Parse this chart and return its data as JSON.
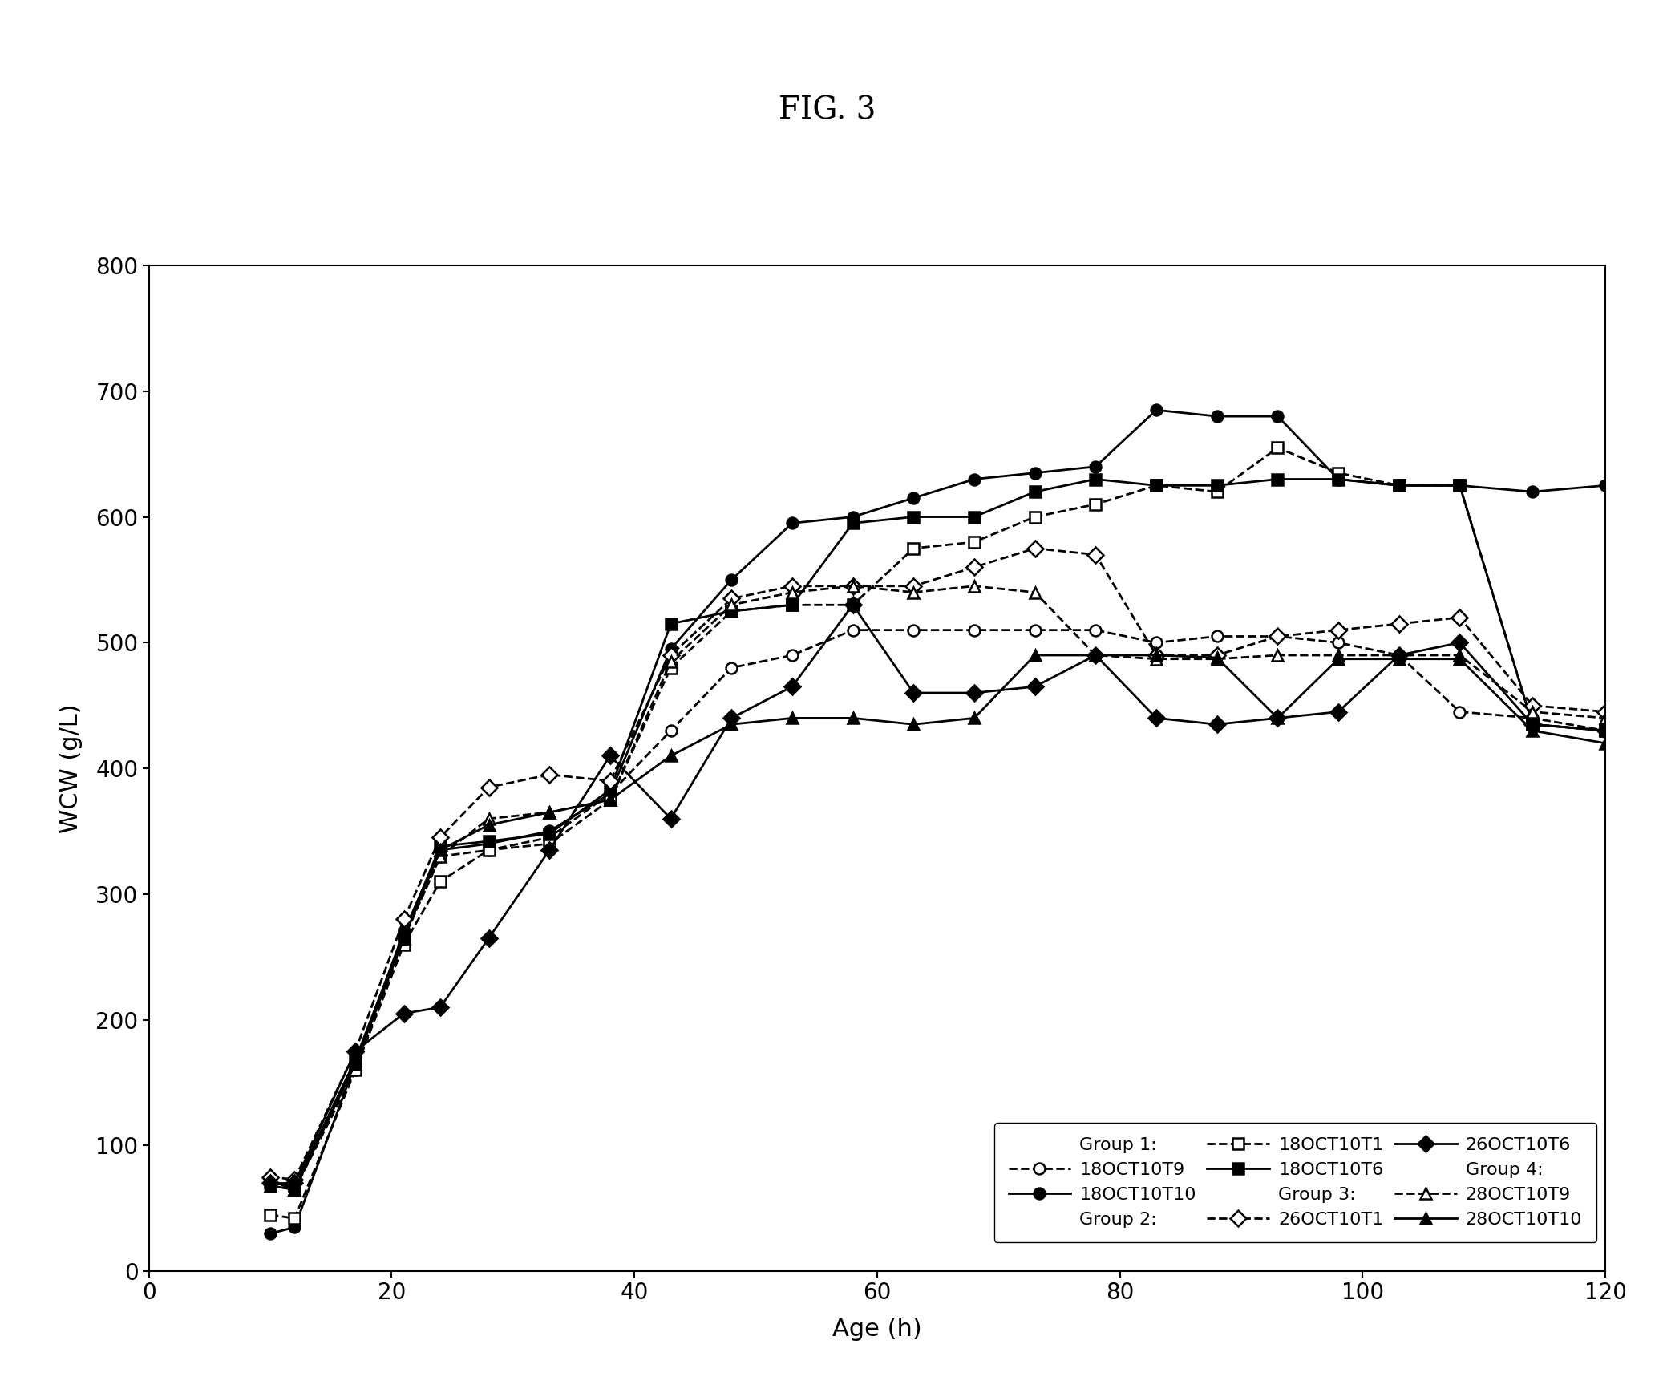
{
  "title": "FIG. 3",
  "xlabel": "Age (h)",
  "ylabel": "WCW (g/L)",
  "xlim": [
    0,
    120
  ],
  "ylim": [
    0,
    800
  ],
  "xticks": [
    0,
    20,
    40,
    60,
    80,
    100,
    120
  ],
  "yticks": [
    0,
    100,
    200,
    300,
    400,
    500,
    600,
    700,
    800
  ],
  "series": [
    {
      "label": "18OCT10T9",
      "group": "Group 1",
      "style": "dashed",
      "marker": "o",
      "filled": false,
      "x": [
        10,
        12,
        17,
        21,
        24,
        28,
        33,
        38,
        43,
        48,
        53,
        58,
        63,
        68,
        73,
        78,
        83,
        88,
        93,
        98,
        103,
        108,
        114,
        120
      ],
      "y": [
        72,
        65,
        160,
        265,
        330,
        335,
        345,
        380,
        430,
        480,
        490,
        510,
        510,
        510,
        510,
        510,
        500,
        505,
        505,
        500,
        490,
        445,
        440,
        430
      ]
    },
    {
      "label": "18OCT10T10",
      "group": "Group 1",
      "style": "solid",
      "marker": "o",
      "filled": true,
      "x": [
        10,
        12,
        17,
        21,
        24,
        28,
        33,
        38,
        43,
        48,
        53,
        58,
        63,
        68,
        73,
        78,
        83,
        88,
        93,
        98,
        103,
        108,
        114,
        120
      ],
      "y": [
        30,
        35,
        165,
        270,
        335,
        340,
        350,
        380,
        495,
        550,
        595,
        600,
        615,
        630,
        635,
        640,
        685,
        680,
        680,
        630,
        625,
        625,
        620,
        625
      ]
    },
    {
      "label": "18OCT10T1",
      "group": "Group 2",
      "style": "dashed",
      "marker": "s",
      "filled": false,
      "x": [
        10,
        12,
        17,
        21,
        24,
        28,
        33,
        38,
        43,
        48,
        53,
        58,
        63,
        68,
        73,
        78,
        83,
        88,
        93,
        98,
        103,
        108,
        114,
        120
      ],
      "y": [
        45,
        42,
        160,
        260,
        310,
        335,
        340,
        375,
        480,
        525,
        530,
        530,
        575,
        580,
        600,
        610,
        625,
        620,
        655,
        635,
        625,
        625,
        435,
        430
      ]
    },
    {
      "label": "18OCT10T6",
      "group": "Group 2",
      "style": "solid",
      "marker": "s",
      "filled": true,
      "x": [
        10,
        12,
        17,
        21,
        24,
        28,
        33,
        38,
        43,
        48,
        53,
        58,
        63,
        68,
        73,
        78,
        83,
        88,
        93,
        98,
        103,
        108,
        114,
        120
      ],
      "y": [
        70,
        68,
        168,
        268,
        338,
        342,
        348,
        383,
        515,
        525,
        530,
        595,
        600,
        600,
        620,
        630,
        625,
        625,
        630,
        630,
        625,
        625,
        435,
        430
      ]
    },
    {
      "label": "26OCT10T1",
      "group": "Group 3",
      "style": "dashed",
      "marker": "D",
      "filled": false,
      "x": [
        10,
        12,
        17,
        21,
        24,
        28,
        33,
        38,
        43,
        48,
        53,
        58,
        63,
        68,
        73,
        78,
        83,
        88,
        93,
        98,
        103,
        108,
        114,
        120
      ],
      "y": [
        75,
        73,
        175,
        280,
        345,
        385,
        395,
        390,
        490,
        535,
        545,
        545,
        545,
        560,
        575,
        570,
        490,
        490,
        505,
        510,
        515,
        520,
        450,
        445
      ]
    },
    {
      "label": "26OCT10T6",
      "group": "Group 3",
      "style": "solid",
      "marker": "D",
      "filled": true,
      "x": [
        10,
        12,
        17,
        21,
        24,
        28,
        33,
        38,
        43,
        48,
        53,
        58,
        63,
        68,
        73,
        78,
        83,
        88,
        93,
        98,
        103,
        108,
        114,
        120
      ],
      "y": [
        70,
        70,
        175,
        205,
        210,
        265,
        335,
        410,
        360,
        440,
        465,
        530,
        460,
        460,
        465,
        490,
        440,
        435,
        440,
        445,
        490,
        500,
        435,
        430
      ]
    },
    {
      "label": "28OCT10T9",
      "group": "Group 4",
      "style": "dashed",
      "marker": "^",
      "filled": false,
      "x": [
        10,
        12,
        17,
        21,
        24,
        28,
        33,
        38,
        43,
        48,
        53,
        58,
        63,
        68,
        73,
        78,
        83,
        88,
        93,
        98,
        103,
        108,
        114,
        120
      ],
      "y": [
        68,
        65,
        165,
        265,
        330,
        360,
        365,
        375,
        485,
        530,
        540,
        545,
        540,
        545,
        540,
        490,
        487,
        487,
        490,
        490,
        490,
        490,
        445,
        440
      ]
    },
    {
      "label": "28OCT10T10",
      "group": "Group 4",
      "style": "solid",
      "marker": "^",
      "filled": true,
      "x": [
        10,
        12,
        17,
        21,
        24,
        28,
        33,
        38,
        43,
        48,
        53,
        58,
        63,
        68,
        73,
        78,
        83,
        88,
        93,
        98,
        103,
        108,
        114,
        120
      ],
      "y": [
        68,
        65,
        165,
        265,
        335,
        355,
        365,
        375,
        410,
        435,
        440,
        440,
        435,
        440,
        490,
        490,
        490,
        488,
        440,
        487,
        487,
        487,
        430,
        420
      ]
    }
  ],
  "legend_groups": [
    {
      "group": "Group 1:",
      "dashed_label": "18OCT10T9",
      "solid_label": "18OCT10T10",
      "marker": "o"
    },
    {
      "group": "Group 2:",
      "dashed_label": "18OCT10T1",
      "solid_label": "18OCT10T6",
      "marker": "s"
    },
    {
      "group": "Group 3:",
      "dashed_label": "26OCT10T1",
      "solid_label": "26OCT10T6",
      "marker": "D"
    },
    {
      "group": "Group 4:",
      "dashed_label": "28OCT10T9",
      "solid_label": "28OCT10T10",
      "marker": "^"
    }
  ],
  "color": "#000000",
  "background": "#ffffff",
  "markersize": 10,
  "linewidth": 2.0,
  "title_fontsize": 28,
  "label_fontsize": 22,
  "tick_fontsize": 20,
  "legend_fontsize": 16
}
